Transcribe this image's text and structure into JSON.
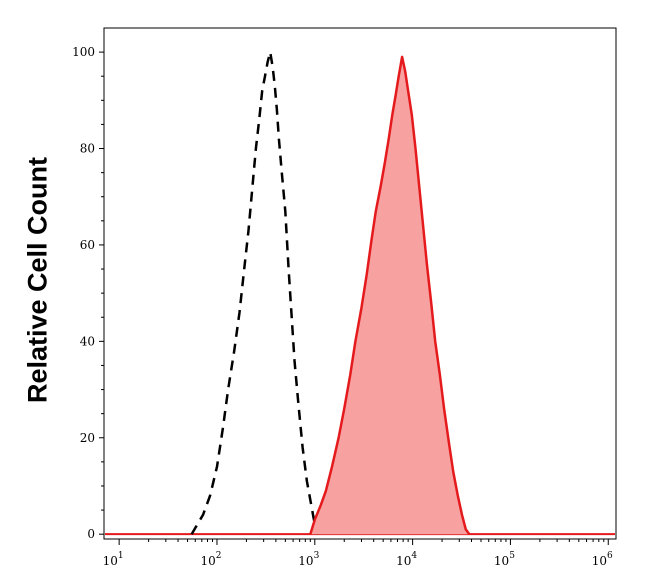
{
  "chart_data": {
    "type": "area",
    "title": "",
    "xlabel": "",
    "ylabel": "Relative Cell Count",
    "x_scale": "log",
    "xlim": [
      7,
      1200000
    ],
    "ylim": [
      -1,
      105
    ],
    "x_ticks": [
      {
        "value": 10,
        "base": "10",
        "exp": "1"
      },
      {
        "value": 100,
        "base": "10",
        "exp": "2"
      },
      {
        "value": 1000,
        "base": "10",
        "exp": "3"
      },
      {
        "value": 10000,
        "base": "10",
        "exp": "4"
      },
      {
        "value": 100000,
        "base": "10",
        "exp": "5"
      },
      {
        "value": 1000000,
        "base": "10",
        "exp": "6"
      }
    ],
    "y_ticks": [
      {
        "value": 0,
        "label": "0"
      },
      {
        "value": 20,
        "label": "20"
      },
      {
        "value": 40,
        "label": "40"
      },
      {
        "value": 60,
        "label": "60"
      },
      {
        "value": 80,
        "label": "80"
      },
      {
        "value": 100,
        "label": "100"
      }
    ],
    "grid": false,
    "legend": "none",
    "series": [
      {
        "style": "dashed-black-outline",
        "color": "#000000",
        "x": [
          55,
          63,
          72,
          85,
          100,
          115,
          130,
          150,
          170,
          190,
          210,
          230,
          250,
          270,
          290,
          310,
          330,
          350,
          370,
          390,
          410,
          430,
          460,
          500,
          540,
          580,
          620,
          680,
          750,
          830,
          920,
          1000,
          1080
        ],
        "y": [
          0,
          2,
          4,
          8,
          14,
          22,
          30,
          38,
          46,
          55,
          63,
          72,
          80,
          86,
          92,
          95,
          98,
          100,
          97,
          93,
          88,
          82,
          75,
          67,
          55,
          45,
          36,
          27,
          18,
          11,
          6,
          2,
          0
        ]
      },
      {
        "style": "red-filled",
        "color": "#e41a1c",
        "fill": "#f8a1a1",
        "x": [
          900,
          1000,
          1150,
          1300,
          1500,
          1750,
          2000,
          2300,
          2600,
          3000,
          3400,
          3800,
          4200,
          4700,
          5200,
          5700,
          6200,
          6700,
          7200,
          7800,
          8400,
          9000,
          9800,
          10700,
          11700,
          12800,
          14000,
          15500,
          17000,
          19000,
          21000,
          23500,
          26000,
          29000,
          32000,
          35000,
          38000
        ],
        "y": [
          0,
          3,
          6,
          9,
          14,
          20,
          26,
          33,
          40,
          47,
          54,
          61,
          67,
          72,
          77,
          82,
          87,
          91,
          95,
          99,
          96,
          92,
          87,
          80,
          72,
          64,
          56,
          48,
          40,
          33,
          26,
          19,
          13,
          8,
          4,
          1,
          0
        ]
      }
    ]
  }
}
